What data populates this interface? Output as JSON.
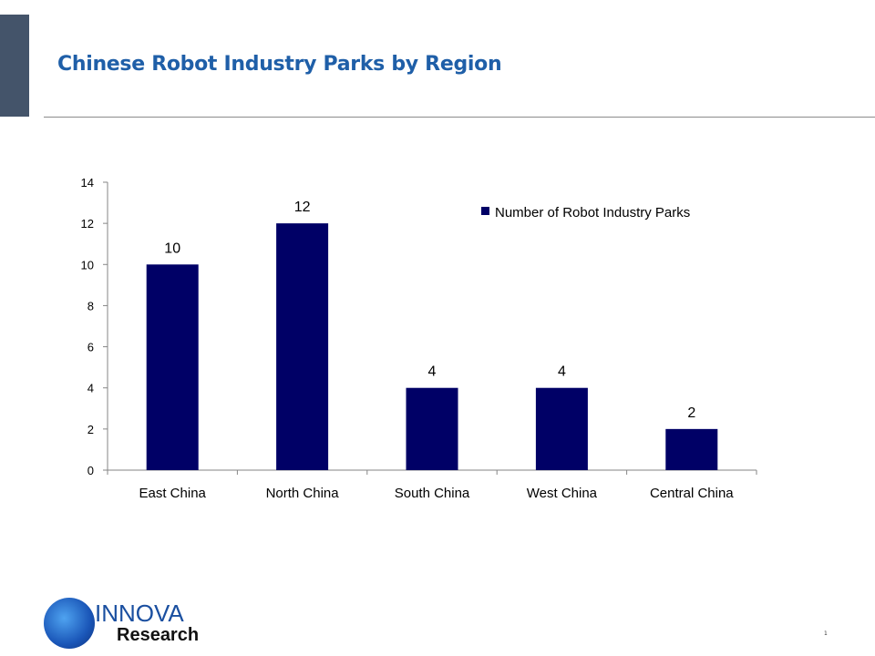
{
  "title": "Chinese Robot Industry Parks by Region",
  "logo": {
    "line1": "INNOVA",
    "line2": "Research"
  },
  "page_number": "1",
  "colors": {
    "bar": "#000066",
    "title": "#1f5fa8",
    "block": "#44546a"
  },
  "chart_data": {
    "type": "bar",
    "title": "",
    "categories": [
      "East China",
      "North China",
      "South China",
      "West China",
      "Central China"
    ],
    "series": [
      {
        "name": "Number of Robot Industry Parks",
        "values": [
          10,
          12,
          4,
          4,
          2
        ]
      }
    ],
    "ylim": [
      0,
      14
    ],
    "yticks": [
      0,
      2,
      4,
      6,
      8,
      10,
      12,
      14
    ],
    "xlabel": "",
    "ylabel": "",
    "grid": false,
    "legend": "top-right",
    "data_labels": true
  }
}
